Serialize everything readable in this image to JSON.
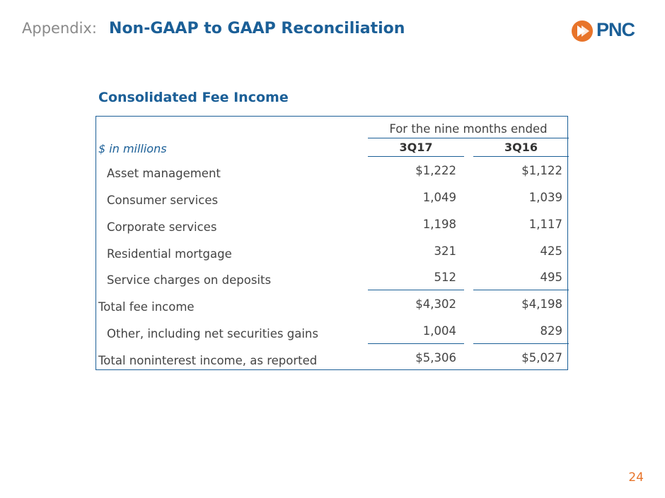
{
  "header": {
    "prefix": "Appendix:",
    "title": "Non-GAAP to GAAP Reconciliation"
  },
  "logo": {
    "text": "PNC",
    "brand_color": "#1b5f97",
    "mark_color": "#e8742a"
  },
  "section_title": "Consolidated Fee Income",
  "table": {
    "period_header": "For the nine months ended",
    "units_label": "$ in millions",
    "columns": [
      "3Q17",
      "3Q16"
    ],
    "rows": [
      {
        "label": "Asset management",
        "v1": "$1,222",
        "v2": "$1,122"
      },
      {
        "label": "Consumer services",
        "v1": "1,049",
        "v2": "1,039"
      },
      {
        "label": "Corporate services",
        "v1": "1,198",
        "v2": "1,117"
      },
      {
        "label": "Residential mortgage",
        "v1": "321",
        "v2": "425"
      },
      {
        "label": "Service charges on deposits",
        "v1": "512",
        "v2": "495"
      },
      {
        "label": "Total fee income",
        "v1": "$4,302",
        "v2": "$4,198"
      },
      {
        "label": "Other, including net securities gains",
        "v1": "1,004",
        "v2": "829"
      },
      {
        "label": "Total noninterest income, as reported",
        "v1": "$5,306",
        "v2": "$5,027"
      }
    ]
  },
  "page_number": "24"
}
